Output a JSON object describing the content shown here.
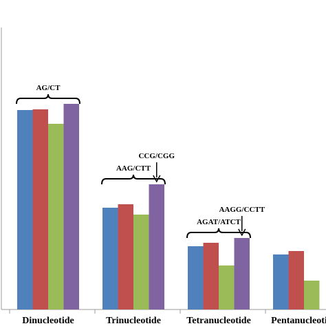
{
  "chart_data": {
    "type": "bar",
    "categories": [
      "Dinucleotide",
      "Trinucleotide",
      "Tetranucleotide",
      "Pentanucleotide"
    ],
    "series": [
      {
        "color": "#4f81bd",
        "values": [
          290,
          148,
          92,
          80
        ]
      },
      {
        "color": "#c0504d",
        "values": [
          291,
          153,
          97,
          85
        ]
      },
      {
        "color": "#9bbb59",
        "values": [
          270,
          138,
          64,
          42
        ]
      },
      {
        "color": "#8064a2",
        "values": [
          299,
          182,
          104,
          null
        ]
      }
    ],
    "ylim": [
      0,
      340
    ],
    "grid": false,
    "annotations": [
      {
        "text": "AG/CT",
        "type": "bracket",
        "category": 0
      },
      {
        "text": "AAG/CTT",
        "type": "bracket",
        "category": 1
      },
      {
        "text": "CCG/CGG",
        "type": "arrow",
        "category": 1,
        "series": 3
      },
      {
        "text": "AGAT/ATCT",
        "type": "bracket",
        "category": 2
      },
      {
        "text": "AAGG/CCTT",
        "type": "arrow",
        "category": 2,
        "series": 3
      }
    ]
  }
}
